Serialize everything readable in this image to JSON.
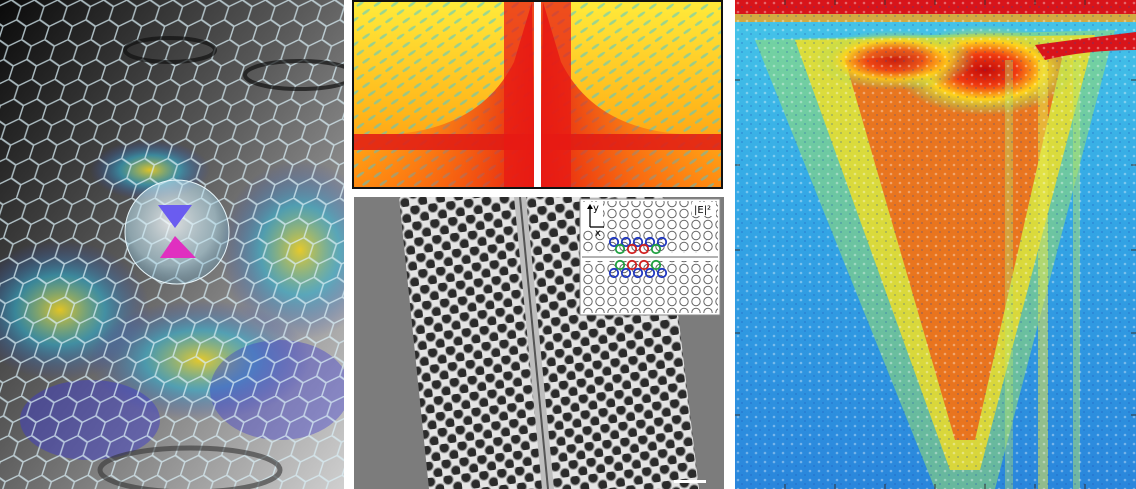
{
  "panels": {
    "graphene": {
      "icon": "graphene-lattice-illustration"
    },
    "field_map": {
      "icon": "electric-field-map"
    },
    "sem": {
      "icon": "photonic-crystal-micrograph",
      "inset": {
        "axis_y": "y",
        "axis_x": "x",
        "field_label": "|E|²"
      }
    },
    "spectrum": {
      "icon": "spectral-heatmap"
    }
  },
  "colors": {
    "red": "#d8141a",
    "yellow": "#ffe01a",
    "cyan": "#3ec7e6",
    "blue": "#2a86dc",
    "gray": "#7a7a7a"
  }
}
